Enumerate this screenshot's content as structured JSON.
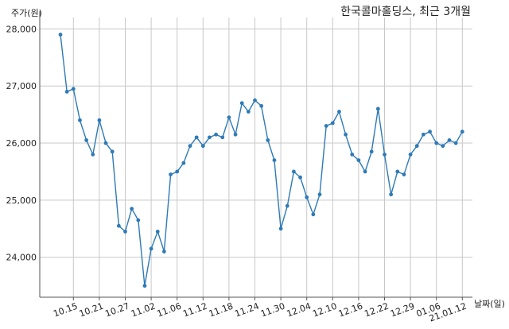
{
  "chart_data": {
    "type": "line",
    "title": "한국콜마홀딩스, 최근 3개월",
    "xlabel": "날짜(일)",
    "ylabel": "주가(원)",
    "ylim": [
      23300,
      28200
    ],
    "yticks": [
      24000,
      25000,
      26000,
      27000,
      28000
    ],
    "ytick_labels": [
      "24,000",
      "25,000",
      "26,000",
      "27,000",
      "28,000"
    ],
    "xtick_labels": [
      "10.15",
      "10.21",
      "10.27",
      "11.02",
      "11.06",
      "11.12",
      "11.18",
      "11.24",
      "11.30",
      "12.04",
      "12.10",
      "12.16",
      "12.22",
      "12.29",
      "01.06",
      "21.01.12"
    ],
    "xtick_index": [
      2,
      6,
      10,
      14,
      18,
      22,
      26,
      30,
      34,
      38,
      42,
      46,
      50,
      54,
      58,
      62
    ],
    "grid": true,
    "color": "#2e7ab7",
    "series": [
      {
        "values": [
          27900,
          26900,
          26950,
          26400,
          26050,
          25800,
          26400,
          26000,
          25850,
          24550,
          24450,
          24850,
          24650,
          23500,
          24150,
          24450,
          24100,
          25450,
          25500,
          25650,
          25950,
          26100,
          25950,
          26100,
          26150,
          26100,
          26450,
          26150,
          26700,
          26550,
          26750,
          26650,
          26050,
          25700,
          24500,
          24900,
          25500,
          25400,
          25050,
          24750,
          25100,
          26300,
          26350,
          26550,
          26150,
          25800,
          25700,
          25500,
          25850,
          26600,
          25800,
          25100,
          25500,
          25450,
          25800,
          25950,
          26150,
          26200,
          26000,
          25950,
          26050,
          26000,
          26200
        ]
      }
    ]
  },
  "labels": {
    "title": "한국콜마홀딩스, 최근 3개월",
    "ylabel": "주가(원)",
    "xlabel": "날짜(일)"
  }
}
